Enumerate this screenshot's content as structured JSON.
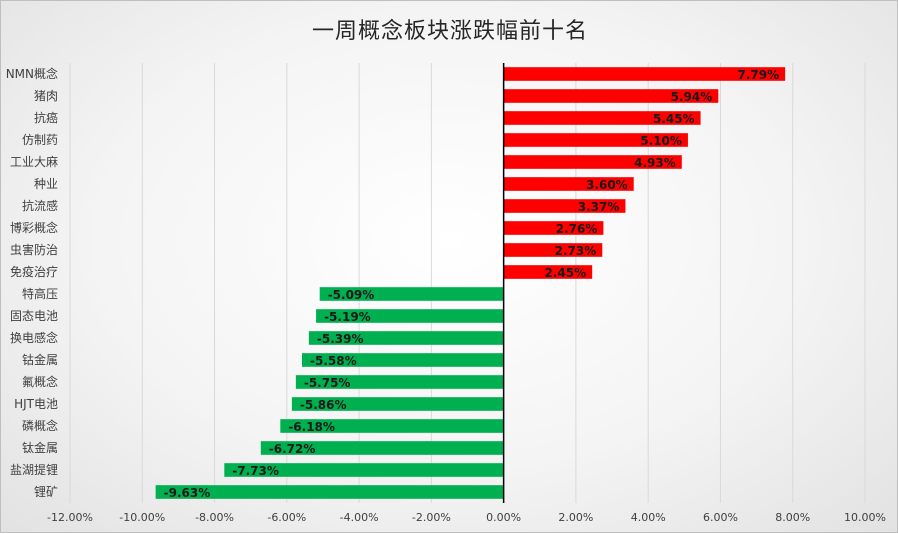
{
  "chart_data": {
    "type": "bar",
    "orientation": "horizontal",
    "title": "一周概念板块涨跌幅前十名",
    "categories": [
      "NMN概念",
      "猪肉",
      "抗癌",
      "仿制药",
      "工业大麻",
      "种业",
      "抗流感",
      "博彩概念",
      "虫害防治",
      "免疫治疗",
      "特高压",
      "固态电池",
      "换电感念",
      "钴金属",
      "氟概念",
      "HJT电池",
      "磷概念",
      "钛金属",
      "盐湖提锂",
      "锂矿"
    ],
    "values": [
      7.79,
      5.94,
      5.45,
      5.1,
      4.93,
      3.6,
      3.37,
      2.76,
      2.73,
      2.45,
      -5.09,
      -5.19,
      -5.39,
      -5.58,
      -5.75,
      -5.86,
      -6.18,
      -6.72,
      -7.73,
      -9.63
    ],
    "data_labels": [
      "7.79%",
      "5.94%",
      "5.45%",
      "5.10%",
      "4.93%",
      "3.60%",
      "3.37%",
      "2.76%",
      "2.73%",
      "2.45%",
      "-5.09%",
      "-5.19%",
      "-5.39%",
      "-5.58%",
      "-5.75%",
      "-5.86%",
      "-6.18%",
      "-6.72%",
      "-7.73%",
      "-9.63%"
    ],
    "xlim": [
      -12,
      10
    ],
    "x_ticks": [
      -12,
      -10,
      -8,
      -6,
      -4,
      -2,
      0,
      2,
      4,
      6,
      8,
      10
    ],
    "x_tick_labels": [
      "-12.00%",
      "-10.00%",
      "-8.00%",
      "-6.00%",
      "-4.00%",
      "-2.00%",
      "0.00%",
      "2.00%",
      "4.00%",
      "6.00%",
      "8.00%",
      "10.00%"
    ],
    "grid": true,
    "positive_color": "#ff0000",
    "negative_color": "#00b050",
    "gridline_color": "#d9d9d9",
    "axis_color": "#000000"
  }
}
